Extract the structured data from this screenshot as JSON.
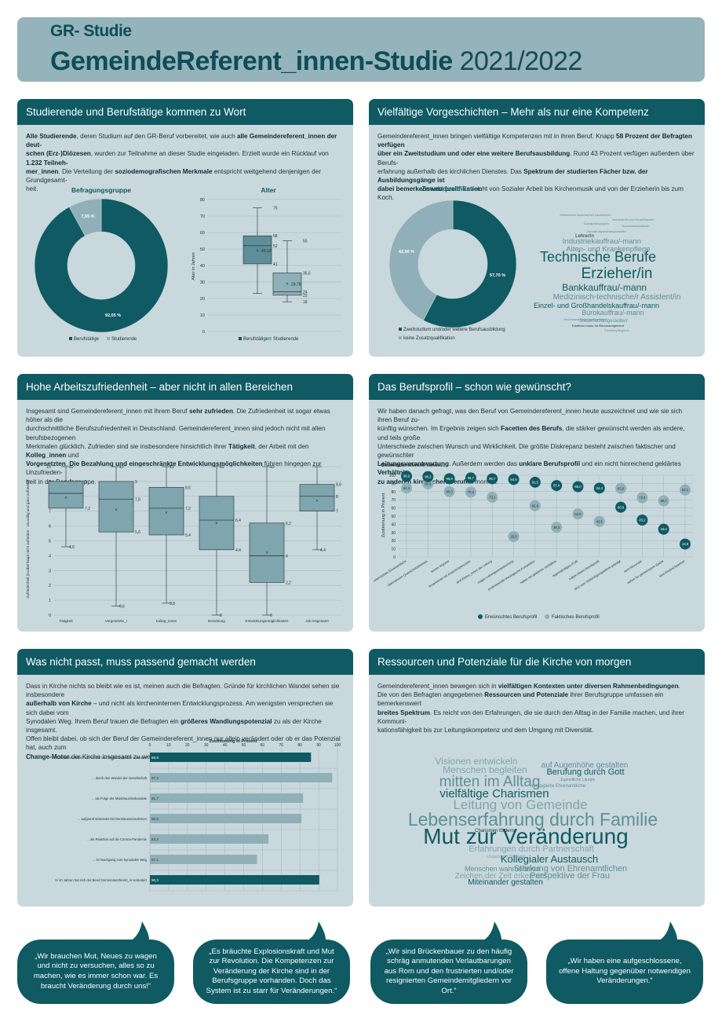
{
  "header": {
    "subtitle": "GR- Studie",
    "title": "GemeindeReferent_innen-Studie",
    "year": "2021/2022"
  },
  "colors": {
    "dark": "#0f5a63",
    "mid": "#5e8f98",
    "light": "#8fb0b8",
    "bg": "#c9d8dc"
  },
  "p1": {
    "title": "Studierende und Berufstätige kommen zu Wort",
    "t1": "Alle Studierende",
    "t2": ", deren Studium auf den GR-Beruf vorbereitet, wie auch ",
    "t3": "alle Gemeindereferent_innen der deut-",
    "t4": "schen (Erz-)Diözesen",
    "t5": ", wurden zur Teilnahme an dieser Studie eingeladen. Erzielt wurde ein Rücklauf von ",
    "t6": "1.232 Teilneh-",
    "t7": "mer_innen",
    "t8": ". Die Verteilung der ",
    "t9": "soziodemografischen Merkmale",
    "t10": " entspricht weitgehend denjenigen der Grundgesamt-",
    "t11": "heit.",
    "donut_title": "Befragungsgruppe",
    "donut_big": "92,05 %",
    "donut_small": "7,95 %",
    "legend_a": "Berufstätige",
    "legend_b": "Studierende",
    "box_title": "Alter",
    "box_ylabel": "Alter in Jahren",
    "box_ticks": [
      "0",
      "10",
      "20",
      "30",
      "40",
      "50",
      "60",
      "70",
      "80"
    ],
    "box_labels": {
      "a_max": "75",
      "a_q3": "58",
      "a_med": "52",
      "a_mean": "49,12",
      "a_q1": "41",
      "a_min": "23",
      "b_max": "55",
      "b_q3": "35,5",
      "b_mean": "28,78",
      "b_med": "24",
      "b_q1": "22",
      "b_min": "18"
    }
  },
  "p2": {
    "title": "Vielfältige Vorgeschichten – Mehr als nur eine Kompetenz",
    "t1": "Gemeindereferent_innen bringen vielfältige Kompetenzen mit in ihren Beruf. Knapp ",
    "t2": "58 Prozent der Befragten verfügen",
    "t3": "über ein Zweitstudium und oder eine weitere Berufsausbildung",
    "t4": ". Rund 43 Prozent verfügen außerdem über Berufs-",
    "t5": "erfahrung außerhalb des kirchlichen Dienstes. Das ",
    "t6": "Spektrum der studierten Fächer bzw. der Ausbildungsgänge ist",
    "t7": "dabei bemerkenswert breit",
    "t8": ": Es reicht von Sozialer Arbeit bis Kirchenmusik und von der Erzieherin bis zum Koch.",
    "donut_title": "Zusatzqualifikation",
    "val_a": "57,70 %",
    "val_b": "42,30 %",
    "legend_a": "Zweitstudium und/oder weitere Berufsausbildung",
    "legend_b": "keine Zusatzqualifikation",
    "words": [
      "Medizinisch-technische/r Assistent/in",
      "Verkäufer/in und Einzelhandel",
      "Sozialpädagoge/in",
      "Hauswirtschaftler/in",
      "Verwaltungsfachangestellte/r",
      "Lehrer/in",
      "Industriekauffrau/-mann",
      "Alten- und Krankenpflege",
      "Technische Berufe",
      "Erzieher/in",
      "Bankkauffrau/-mann",
      "Medizinisch-technische/r Assistent/in",
      "Einzel- und Großhandelskauffrau/-mann",
      "Bürokauffrau/-mann",
      "Steuerfachangestellte/r",
      "Kauffrau/-mann für Büromanagement",
      "Familienpfleger/in",
      "Rechtsanwaltsfachangestellte/r"
    ]
  },
  "p3": {
    "title": "Hohe Arbeitszufriedenheit – aber nicht in allen Bereichen",
    "t1": "Insgesamt sind Gemeindereferent_innen mit ihrem Beruf ",
    "t2": "sehr zufrieden",
    "t3": ". Die Zufriedenheit ist sogar etwas höher als die",
    "t4": "durchschnittliche Berufszufriedenheit in Deutschland. Gemeindereferent_innen sind jedoch nicht mit allen berufsbezogenen",
    "t5": "Merkmalen glücklich. Zufrieden sind sie insbesondere hinsichtlich ihrer ",
    "t6": "Tätigkeit",
    "t7": ", der Arbeit mit den ",
    "t8": "Kolleg_innen",
    "t9": " und",
    "t10": "Vorgesetzten",
    "t11": ". ",
    "t12": "Die Bezahlung und eingeschränkte Entwicklungsmöglichkeiten",
    "t13": " führen hingegen zur Unzufrieden-",
    "t14": "heit in der Berufsgruppe.",
    "ylabel": "Zufriedenheit (0=überhaupt nicht zufrieden - 10=völlig und ganz zufrieden)",
    "ticks": [
      "0",
      "1",
      "2",
      "3",
      "4",
      "5",
      "6",
      "7",
      "8",
      "9",
      "10"
    ],
    "boxes": [
      {
        "name": "Tätigkeit",
        "max": "10",
        "q3": "9",
        "med": "",
        "q1": "7,2",
        "min": "4,6"
      },
      {
        "name": "Vorgesetzte_r",
        "max": "10",
        "q3": "9",
        "med": "7,8",
        "q1": "5,6",
        "min": "0,6"
      },
      {
        "name": "Kolleg_innen",
        "max": "10",
        "q3": "8,6",
        "med": "7,2",
        "q1": "5,4",
        "min": "0,8"
      },
      {
        "name": "Bezahlung",
        "max": "10",
        "q3": "",
        "med": "6,4",
        "q1": "4,4",
        "min": "0"
      },
      {
        "name": "Entwicklungsmöglichkeiten",
        "max": "10",
        "q3": "6,2",
        "med": "4",
        "q1": "2,2",
        "min": "0"
      },
      {
        "name": "Job insgesamt",
        "max": "",
        "q3": "8,8",
        "med": "8",
        "q1": "7",
        "min": "4,4"
      }
    ]
  },
  "p4": {
    "title": "Das Berufsprofil – schon wie gewünscht?",
    "t1": "Wir haben danach gefragt, was den Beruf von Gemeindereferent_innen heute auszeichnet und wie sie sich ihren Beruf zu-",
    "t2": "künftig wünschen. Im Ergebnis zeigen sich ",
    "t3": "Facetten des Berufs",
    "t4": ", die stärker gewünscht werden als andere, und teils große",
    "t5": "Unterschiede zwischen Wunsch und Wirklichkeit. Die größte Diskrepanz besteht zwischen faktischer und gewünschter",
    "t6": "Leitungsverantwortung",
    "t7": ". Außerdem werden das ",
    "t8": "unklare Berufsprofil",
    "t9": " und ein nicht hinreichend geklärtes ",
    "t10": "Verhältnis",
    "t11": "zu anderen kirchlichen Berufen",
    "t12": " moniert.",
    "chart_title": "Gemeindereferent_innen...",
    "ylabel": "Zustimmung in Prozent",
    "ticks": [
      "0",
      "10",
      "20",
      "30",
      "40",
      "50",
      "60",
      "70",
      "80",
      "90",
      "100"
    ],
    "legend_a": "Erwünschtes Berufsprofil",
    "legend_b": "Faktisches Berufsprofil"
  },
  "p5": {
    "title": "Was nicht passt, muss passend gemacht werden",
    "t1": "Dass in Kirche nichts so bleibt wie es ist, meinen auch die Befragten. Gründe für kirchlichen Wandel sehen sie insbesondere",
    "t2": "außerhalb von Kirche",
    "t3": " – und nicht als kircheninternen Entwicklungsprozess. Am wenigsten versprechen sie sich dabei vom",
    "t4": "Synodalen Weg. Ihrem Beruf trauen die Befragten ein ",
    "t5": "größeres Wandlungspotenzial",
    "t6": " zu als der Kirche insgesamt.",
    "t7": "Offen bleibt dabei, ob sich der Beruf der Gemeindereferent_innen nur allein verändert oder ob er das Potenzial hat, auch zum",
    "t8": "Change-Motor",
    "t9": " der Kirche insgesamt zu werden.",
    "chart_title": "Zustimmung in Prozent",
    "ticks": [
      "0",
      "10",
      "20",
      "30",
      "40",
      "50",
      "60",
      "70",
      "80",
      "90",
      "100"
    ]
  },
  "p6": {
    "title": "Ressourcen und Potenziale für die Kirche von morgen",
    "t1": "Gemeindereferent_innen bewegen sich in ",
    "t2": "vielfältigen Kontexten unter diversen Rahmenbedingungen",
    "t3": "Die von den Befragten angegebenen ",
    "t4": "Ressourcen und Potenziale",
    "t5": " ihrer Berufsgruppe umfassen ein bemerkenswert",
    "t6": "breites Spektrum",
    "t7": ". Es reicht von den Erfahrungen, die sie durch den Alltag in der Familie machen, und ihrer Kommuni-",
    "t8": "kationsfähigkeit bis zur Leitungskompetenz und dem Umgang mit Diversität.",
    "words": [
      "Visionen entwickeln",
      "auf Augenhöhe gestalten",
      "Menschen begleiten",
      "Berufung durch Gott",
      "mitten im Alltag",
      "Jugendliche Liturgie",
      "vielfältige Charismen",
      "Leitung von Gemeinde",
      "Lebenserfahrung durch Familie",
      "Charismen fördern",
      "Mut zur Veränderung",
      "Erfahrungen durch Partnerschaft",
      "Kollegialer Austausch",
      "Menschen wahrnehmen",
      "Stärkung von Ehrenamtlichen",
      "Zeichen der Zeit erkennen",
      "Perspektive der Frau",
      "Miteinander gestalten",
      "Umgang mit Diversität",
      "engagierte Ehrenamtliche"
    ]
  },
  "quotes": [
    "„Wir brauchen Mut, Neues zu wagen und nicht zu versuchen, alles so zu machen, wie es immer schon war. Es braucht Veränderung durch uns!“",
    "„Es bräuchte Explosionskraft und Mut zur Revolution. Die Kompetenzen zur Veränderung der Kirche sind in der Berufsgruppe vorhanden. Doch das System ist zu starr für Veränderungen.“",
    "„Wir sind Brückenbauer zu den häufig schräg anmutenden Verlautbarungen aus Rom und den frustrierten und/oder resignierten Gemeindemitgliedern vor Ort.“",
    "„Wir haben eine aufgeschlossene, offene Haltung gegenüber notwendigen Veränderungen.“"
  ],
  "chart_data": [
    {
      "type": "pie",
      "title": "Befragungsgruppe",
      "categories": [
        "Berufstätige",
        "Studierende"
      ],
      "values": [
        92.05,
        7.95
      ]
    },
    {
      "type": "pie",
      "title": "Zusatzqualifikation",
      "categories": [
        "Zweitstudium und/oder weitere Berufsausbildung",
        "keine Zusatzqualifikation"
      ],
      "values": [
        57.7,
        42.3
      ]
    },
    {
      "type": "box",
      "title": "Alter",
      "ylabel": "Alter in Jahren",
      "ylim": [
        0,
        80
      ],
      "series": [
        {
          "name": "Berufstätige",
          "min": 23,
          "q1": 41,
          "median": 52,
          "q3": 58,
          "max": 75,
          "mean": 49.12
        },
        {
          "name": "Studierende",
          "min": 18,
          "q1": 22,
          "median": 24,
          "q3": 35.5,
          "max": 55,
          "mean": 28.78
        }
      ]
    },
    {
      "type": "box",
      "ylabel": "Zufriedenheit (0=überhaupt nicht zufrieden - 10=völlig und ganz zufrieden)",
      "ylim": [
        0,
        10
      ],
      "series": [
        {
          "name": "Tätigkeit",
          "min": 4.6,
          "q1": 7.2,
          "median": 8.2,
          "q3": 9,
          "max": 10,
          "mean": 7.9
        },
        {
          "name": "Vorgesetzte_r",
          "min": 0.6,
          "q1": 5.6,
          "median": 7.8,
          "q3": 9,
          "max": 10,
          "mean": 7.1
        },
        {
          "name": "Kolleg_innen",
          "min": 0.8,
          "q1": 5.4,
          "median": 7.2,
          "q3": 8.6,
          "max": 10,
          "mean": 6.9
        },
        {
          "name": "Bezahlung",
          "min": 0,
          "q1": 4.4,
          "median": 6.4,
          "q3": 8,
          "max": 10,
          "mean": 6.2
        },
        {
          "name": "Entwicklungsmöglichkeiten",
          "min": 0,
          "q1": 2.2,
          "median": 4,
          "q3": 6.2,
          "max": 10,
          "mean": 4.2
        },
        {
          "name": "Job insgesamt",
          "min": 4.4,
          "q1": 7,
          "median": 8,
          "q3": 8.8,
          "max": 10,
          "mean": 7.7
        }
      ]
    },
    {
      "type": "scatter",
      "title": "Gemeindereferent_innen...",
      "ylabel": "Zustimmung in Prozent",
      "ylim": [
        0,
        100
      ],
      "categories": [
        "unterstützen Ehrenamtliche",
        "übernehmen Querschnittsthemen",
        "setzen Impulse",
        "kooperieren mit Ansprechpersonen",
        "sind Akteur_innen der Leitung",
        "tragen Leitungsverantwortung",
        "professionelle theologische Kompetenz",
        "haben ein geklärtes Verhältnis",
        "eigenständiges Profil",
        "haben klares Berufsprofil",
        "sind vom Verkündigungsdienst geprägt",
        "sind Allrounder",
        "ziehen für gemeinsame Sache",
        "sind Ansprechpartner"
      ],
      "series": [
        {
          "name": "Erwünschtes Berufsprofil",
          "values": [
            98.9,
            98.3,
            95.8,
            96.7,
            95.7,
            94.9,
            91.5,
            87.4,
            86.0,
            84.3,
            60.9,
            45.2,
            34.0,
            15.8
          ]
        },
        {
          "name": "Faktisches Berufsprofil",
          "values": [
            84.3,
            89.5,
            80.0,
            79.3,
            73.1,
            25.0,
            62.8,
            36.3,
            52.6,
            43.5,
            83.9,
            72.6,
            68.7,
            82.1
          ]
        }
      ]
    },
    {
      "type": "bar",
      "title": "Zustimmung in Prozent",
      "xlim": [
        0,
        100
      ],
      "categories": [
        "In 10 Jahren haben sich Kirche und Pastoral spürbar verändert",
        "... durch den Wandel der Gesellschaft",
        "... als Folge der Missbrauchsskandale",
        "... aufgrund sinkender Kirchensteuereinnahmen",
        "... als Reaktion auf die Corona-Pandemie",
        "... im Nachgang zum Synodalen Weg",
        "In 10 Jahren hat sich der Beruf Gemeindereferent_in verändert"
      ],
      "values": [
        85.9,
        97.2,
        81.7,
        80.8,
        63.2,
        57.1,
        90.3
      ]
    }
  ]
}
